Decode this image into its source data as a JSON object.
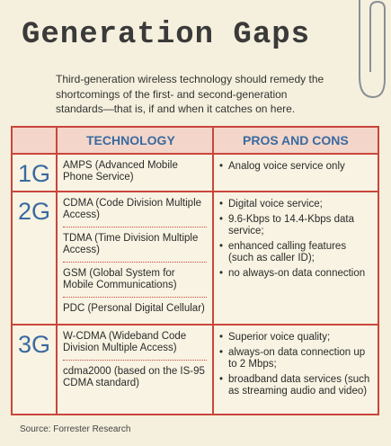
{
  "header": {
    "title": "Generation Gaps",
    "subtitle": "Third-generation wireless technology should remedy the shortcomings of the first- and second-generation standards—that is, if and when it catches on here."
  },
  "table": {
    "columns": [
      "TECHNOLOGY",
      "PROS AND CONS"
    ],
    "rows": [
      {
        "generation": "1G",
        "technologies": [
          "AMPS (Advanced Mobile Phone Service)"
        ],
        "pros": [
          "Analog voice service only"
        ]
      },
      {
        "generation": "2G",
        "technologies": [
          "CDMA (Code Division Multiple Access)",
          "TDMA (Time Division Multiple Access)",
          "GSM (Global System for Mobile Communications)",
          "PDC (Personal Digital Cellular)"
        ],
        "pros": [
          "Digital voice service;",
          "9.6-Kbps to 14.4-Kbps data service;",
          "enhanced calling features (such as caller ID);",
          "no always-on data connection"
        ]
      },
      {
        "generation": "3G",
        "technologies": [
          "W-CDMA (Wideband Code Division Multiple Access)",
          "cdma2000 (based on the IS-95 CDMA standard)"
        ],
        "pros": [
          "Superior voice quality;",
          "always-on data connection up to 2 Mbps;",
          "broadband data services (such as streaming audio and video)"
        ]
      }
    ]
  },
  "footer": {
    "source": "Source: Forrester Research"
  }
}
